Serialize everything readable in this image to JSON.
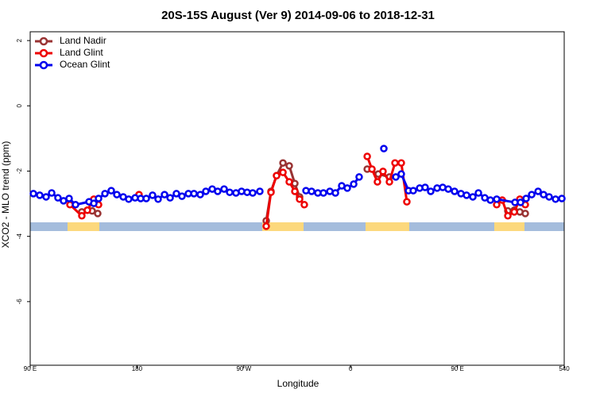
{
  "chart_data": {
    "type": "line",
    "title": "20S-15S August (Ver 9)   2014-09-06 to 2018-12-31",
    "xlabel": "Longitude",
    "ylabel": "XCO2 - MLO trend (ppm)",
    "xlim": [
      90,
      540
    ],
    "ylim": [
      -7.95,
      2.27
    ],
    "xticks": [
      {
        "value": 90,
        "label": "90 E"
      },
      180,
      {
        "value": 270,
        "label": "90 W"
      },
      {
        "value": 360,
        "label": "0"
      },
      {
        "value": 450,
        "label": "90 E"
      },
      540
    ],
    "yticks": [
      2,
      0,
      -2,
      -4,
      -6
    ],
    "legend": "upper left",
    "series": [
      {
        "name": "Land Nadir",
        "color": "#993333",
        "x": [
          133.5,
          138.2,
          142.2,
          146.9,
          null,
          288.9,
          292.9,
          297.6,
          303.0,
          308.3,
          313.0,
          317.0,
          null,
          374.0,
          383.3,
          392.7,
          null,
          492.5,
          497.9,
          502.6,
          507.2
        ],
        "values": [
          -3.25,
          -3.2,
          -3.22,
          -3.3,
          null,
          -3.52,
          -2.62,
          -2.14,
          -1.75,
          -1.84,
          -2.38,
          -2.79,
          null,
          -1.94,
          -2.09,
          -2.18,
          null,
          -3.22,
          -3.2,
          -3.25,
          -3.3
        ]
      },
      {
        "name": "Land Glint",
        "color": "#ee0000",
        "x": [
          123.5,
          133.5,
          138.2,
          143.6,
          147.6,
          null,
          181.7,
          null,
          288.9,
          292.9,
          297.6,
          303.0,
          308.3,
          313.0,
          317.0,
          321.0,
          null,
          374.0,
          378.0,
          382.6,
          387.3,
          392.7,
          397.4,
          402.7,
          407.4,
          null,
          483.1,
          487.8,
          492.5,
          497.9,
          502.6,
          507.2
        ],
        "values": [
          -3.03,
          -3.37,
          -3.2,
          -2.86,
          -3.03,
          null,
          -2.72,
          null,
          -3.69,
          -2.65,
          -2.14,
          -2.04,
          -2.33,
          -2.62,
          -2.86,
          -3.03,
          null,
          -1.55,
          -1.94,
          -2.33,
          -2.01,
          -2.33,
          -1.75,
          -1.75,
          -2.94,
          null,
          -3.03,
          -2.89,
          -3.37,
          -3.25,
          -2.86,
          -3.03
        ]
      },
      {
        "name": "Ocean Glint",
        "color": "#0000ee",
        "x": [
          92.7,
          98.0,
          103.4,
          108.1,
          113.4,
          118.1,
          122.8,
          128.2,
          139.6,
          143.6,
          147.6,
          153.0,
          158.3,
          163.0,
          168.4,
          173.0,
          178.4,
          183.1,
          187.8,
          193.1,
          197.8,
          203.2,
          207.9,
          213.2,
          217.9,
          223.3,
          228.0,
          233.3,
          238.0,
          243.4,
          248.0,
          253.4,
          258.1,
          263.4,
          268.1,
          272.8,
          277.5,
          283.5,
          null,
          322.4,
          327.1,
          332.4,
          337.1,
          342.5,
          347.2,
          352.5,
          357.2,
          362.6,
          367.2,
          null,
          388.0,
          null,
          398.1,
          402.7,
          408.8,
          412.8,
          418.2,
          422.8,
          427.5,
          432.9,
          437.6,
          442.3,
          447.6,
          453.0,
          457.7,
          463.0,
          467.7,
          473.1,
          477.8,
          483.1,
          498.5,
          503.2,
          507.9,
          512.6,
          518.0,
          522.6,
          527.3,
          532.7,
          538.0
        ],
        "values": [
          -2.69,
          -2.74,
          -2.79,
          -2.67,
          -2.82,
          -2.91,
          -2.84,
          -3.03,
          -2.94,
          -2.99,
          -2.84,
          -2.69,
          -2.6,
          -2.72,
          -2.79,
          -2.86,
          -2.82,
          -2.84,
          -2.84,
          -2.74,
          -2.86,
          -2.72,
          -2.82,
          -2.69,
          -2.77,
          -2.69,
          -2.69,
          -2.72,
          -2.62,
          -2.55,
          -2.62,
          -2.55,
          -2.65,
          -2.67,
          -2.62,
          -2.65,
          -2.67,
          -2.62,
          null,
          -2.6,
          -2.62,
          -2.67,
          -2.67,
          -2.62,
          -2.67,
          -2.45,
          -2.52,
          -2.4,
          -2.18,
          null,
          -1.31,
          null,
          -2.18,
          -2.09,
          -2.6,
          -2.6,
          -2.52,
          -2.5,
          -2.62,
          -2.52,
          -2.5,
          -2.55,
          -2.62,
          -2.69,
          -2.74,
          -2.79,
          -2.67,
          -2.82,
          -2.89,
          -2.86,
          -2.96,
          -2.96,
          -2.84,
          -2.72,
          -2.62,
          -2.72,
          -2.79,
          -2.86,
          -2.84
        ]
      }
    ]
  }
}
